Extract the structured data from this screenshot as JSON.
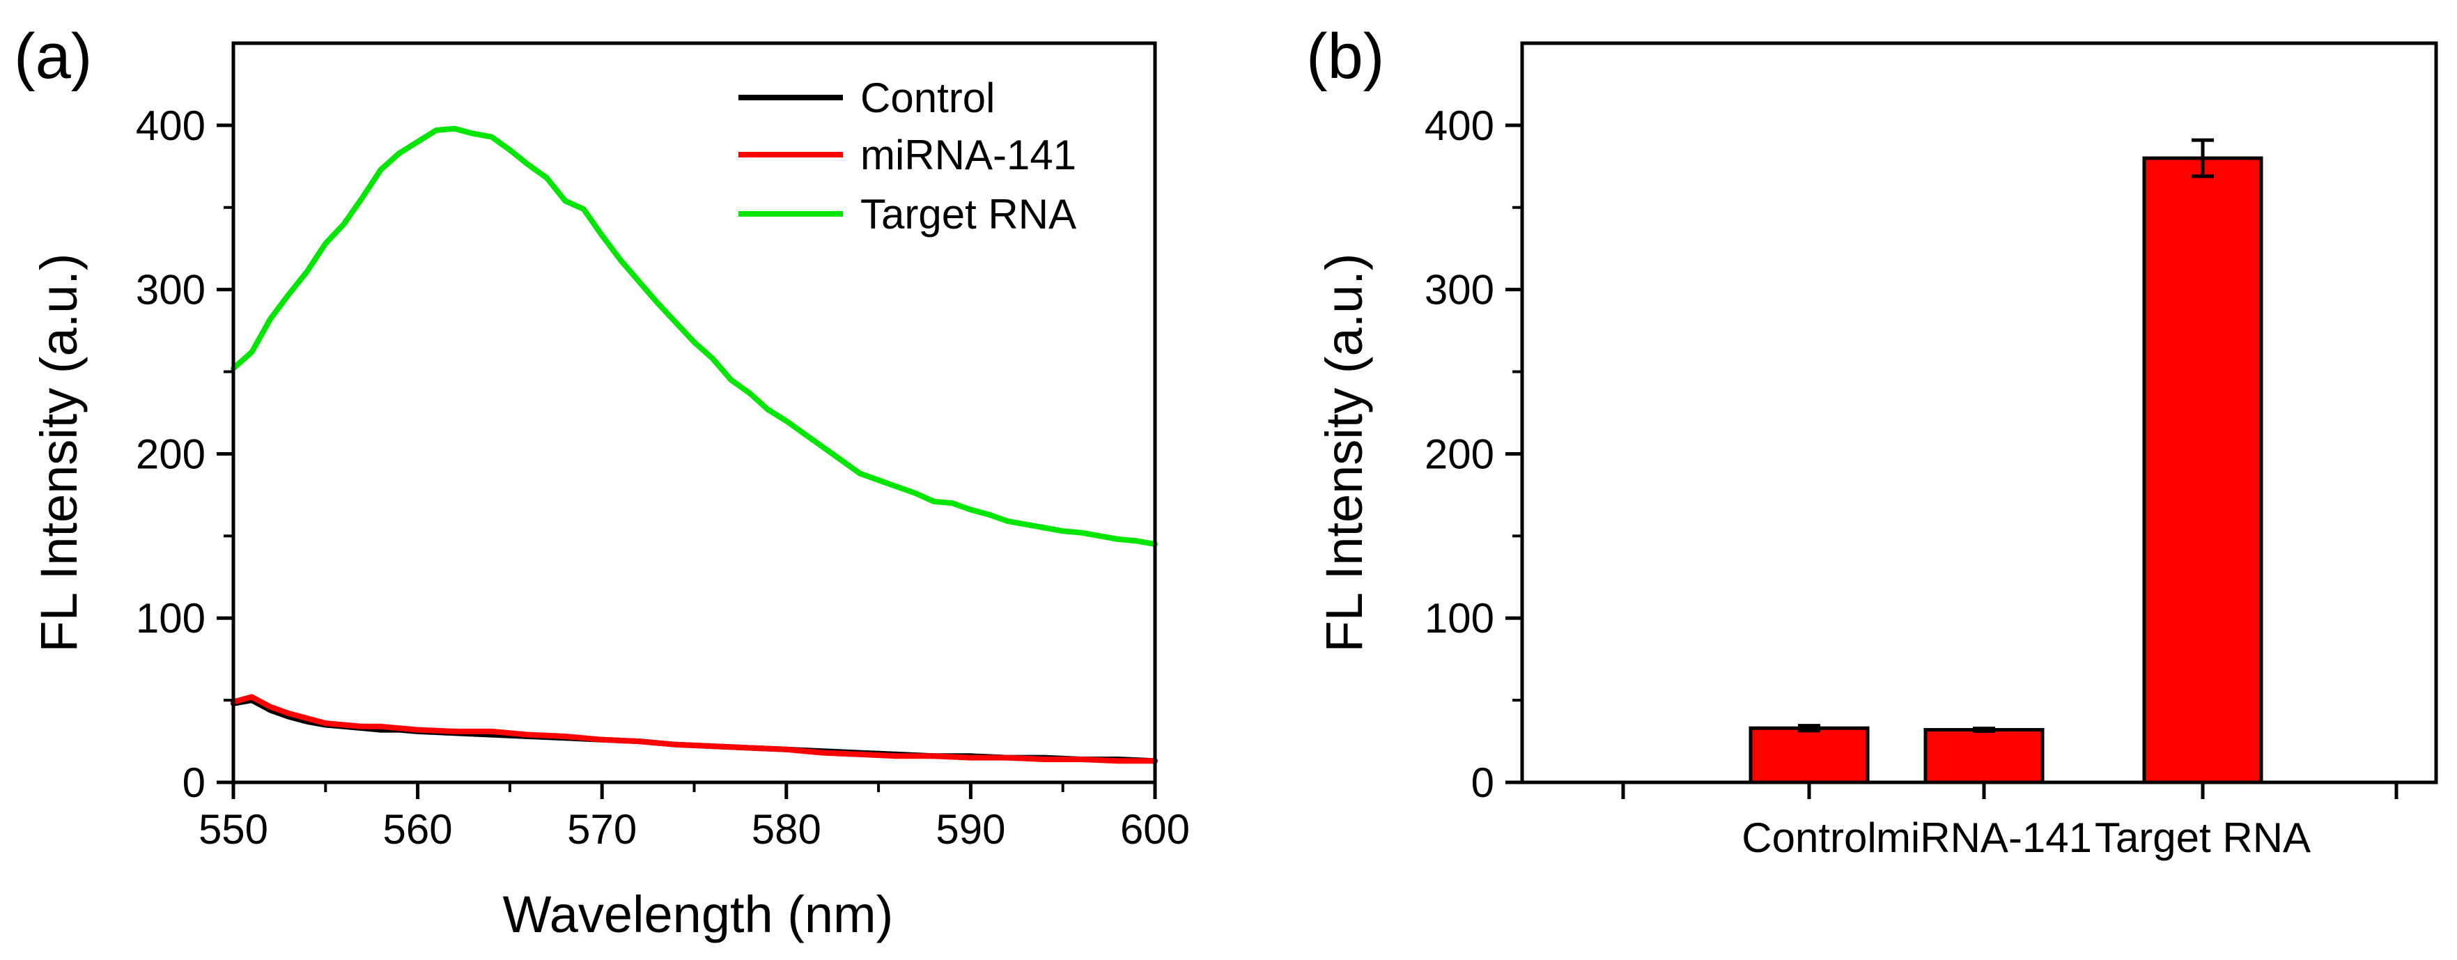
{
  "chart_data": [
    {
      "panel_label": "(a)",
      "type": "line",
      "xlabel": "Wavelength (nm)",
      "ylabel": "FL Intensity (a.u.)",
      "xlim": [
        550,
        600
      ],
      "ylim": [
        0,
        450
      ],
      "xticks": [
        550,
        560,
        570,
        580,
        590,
        600
      ],
      "yticks": [
        0,
        100,
        200,
        300,
        400
      ],
      "legend_position": "top-right",
      "series": [
        {
          "name": "Control",
          "color": "#000000",
          "x": [
            550,
            551,
            552,
            553,
            554,
            555,
            556,
            557,
            558,
            559,
            560,
            562,
            564,
            566,
            568,
            570,
            572,
            574,
            576,
            578,
            580,
            582,
            584,
            586,
            588,
            590,
            592,
            594,
            596,
            598,
            600
          ],
          "y": [
            48,
            50,
            44,
            40,
            37,
            35,
            34,
            33,
            32,
            32,
            31,
            30,
            29,
            28,
            27,
            26,
            25,
            23,
            22,
            21,
            20,
            19,
            18,
            17,
            16,
            16,
            15,
            15,
            14,
            14,
            13
          ]
        },
        {
          "name": "miRNA-141",
          "color": "#ff0000",
          "x": [
            550,
            551,
            552,
            553,
            554,
            555,
            556,
            557,
            558,
            559,
            560,
            562,
            564,
            566,
            568,
            570,
            572,
            574,
            576,
            578,
            580,
            582,
            584,
            586,
            588,
            590,
            592,
            594,
            596,
            598,
            600
          ],
          "y": [
            49,
            52,
            46,
            42,
            39,
            36,
            35,
            34,
            34,
            33,
            32,
            31,
            31,
            29,
            28,
            26,
            25,
            23,
            22,
            21,
            20,
            18,
            17,
            16,
            16,
            15,
            15,
            14,
            14,
            13,
            13
          ]
        },
        {
          "name": "Target RNA",
          "color": "#00e600",
          "x": [
            550,
            551,
            552,
            553,
            554,
            555,
            556,
            557,
            558,
            559,
            560,
            561,
            562,
            563,
            564,
            565,
            566,
            567,
            568,
            569,
            570,
            571,
            572,
            573,
            574,
            575,
            576,
            577,
            578,
            579,
            580,
            581,
            582,
            583,
            584,
            585,
            586,
            587,
            588,
            589,
            590,
            591,
            592,
            593,
            594,
            595,
            596,
            597,
            598,
            599,
            600
          ],
          "y": [
            252,
            262,
            282,
            297,
            311,
            328,
            340,
            356,
            373,
            383,
            390,
            397,
            398,
            395,
            393,
            385,
            376,
            368,
            354,
            349,
            333,
            318,
            305,
            292,
            280,
            268,
            258,
            245,
            237,
            227,
            220,
            212,
            204,
            196,
            188,
            184,
            180,
            176,
            171,
            170,
            166,
            163,
            159,
            157,
            155,
            153,
            152,
            150,
            148,
            147,
            145
          ]
        }
      ]
    },
    {
      "panel_label": "(b)",
      "type": "bar",
      "xlabel": "",
      "ylabel": "FL Intensity (a.u.)",
      "ylim": [
        0,
        450
      ],
      "yticks": [
        0,
        100,
        200,
        300,
        400
      ],
      "categories": [
        "Control",
        "miRNA-141",
        "Target RNA"
      ],
      "values": [
        33,
        32,
        380
      ],
      "errors": [
        1.5,
        0.8,
        11
      ],
      "bar_color": "#ff0000"
    }
  ]
}
